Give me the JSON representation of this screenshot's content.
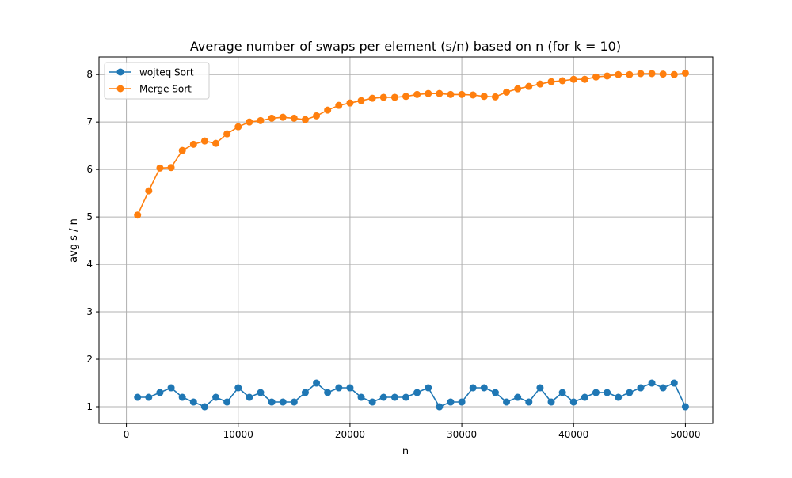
{
  "chart_data": {
    "type": "line",
    "title": "Average number of swaps per element (s/n) based on n (for k = 10)",
    "xlabel": "n",
    "ylabel": "avg s / n",
    "xlim": [
      -2450,
      52450
    ],
    "ylim": [
      0.65,
      8.37
    ],
    "xticks": [
      0,
      10000,
      20000,
      30000,
      40000,
      50000
    ],
    "yticks": [
      1,
      2,
      3,
      4,
      5,
      6,
      7,
      8
    ],
    "grid": true,
    "legend_position": "top-left",
    "x": [
      1000,
      2000,
      3000,
      4000,
      5000,
      6000,
      7000,
      8000,
      9000,
      10000,
      11000,
      12000,
      13000,
      14000,
      15000,
      16000,
      17000,
      18000,
      19000,
      20000,
      21000,
      22000,
      23000,
      24000,
      25000,
      26000,
      27000,
      28000,
      29000,
      30000,
      31000,
      32000,
      33000,
      34000,
      35000,
      36000,
      37000,
      38000,
      39000,
      40000,
      41000,
      42000,
      43000,
      44000,
      45000,
      46000,
      47000,
      48000,
      49000,
      50000
    ],
    "series": [
      {
        "name": "wojteq Sort",
        "color": "#1f77b4",
        "values": [
          1.2,
          1.2,
          1.3,
          1.4,
          1.2,
          1.1,
          1.0,
          1.2,
          1.1,
          1.4,
          1.2,
          1.3,
          1.1,
          1.1,
          1.1,
          1.3,
          1.5,
          1.3,
          1.4,
          1.4,
          1.2,
          1.1,
          1.2,
          1.2,
          1.2,
          1.3,
          1.4,
          1.0,
          1.1,
          1.1,
          1.4,
          1.4,
          1.3,
          1.1,
          1.2,
          1.1,
          1.4,
          1.1,
          1.3,
          1.1,
          1.2,
          1.3,
          1.3,
          1.2,
          1.3,
          1.4,
          1.5,
          1.4,
          1.5,
          1.0
        ]
      },
      {
        "name": "Merge Sort",
        "color": "#ff7f0e",
        "values": [
          5.04,
          5.55,
          6.03,
          6.04,
          6.4,
          6.53,
          6.6,
          6.55,
          6.75,
          6.9,
          7.0,
          7.03,
          7.08,
          7.1,
          7.08,
          7.05,
          7.13,
          7.25,
          7.35,
          7.4,
          7.45,
          7.5,
          7.52,
          7.52,
          7.54,
          7.58,
          7.6,
          7.6,
          7.58,
          7.58,
          7.57,
          7.54,
          7.53,
          7.63,
          7.7,
          7.75,
          7.8,
          7.85,
          7.87,
          7.9,
          7.9,
          7.95,
          7.97,
          8.0,
          8.0,
          8.02,
          8.02,
          8.01,
          8.0,
          8.03
        ]
      }
    ]
  }
}
